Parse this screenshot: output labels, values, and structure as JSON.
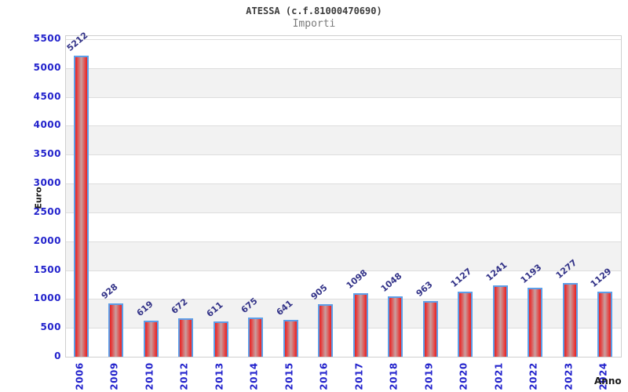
{
  "header": {
    "title": "ATESSA (c.f.81000470690)",
    "subtitle": "Importi"
  },
  "chart_data": {
    "type": "bar",
    "title": "ATESSA (c.f.81000470690)",
    "subtitle": "Importi",
    "xlabel": "Anno",
    "ylabel": "Euro",
    "categories": [
      "2006",
      "2009",
      "2010",
      "2012",
      "2013",
      "2014",
      "2015",
      "2016",
      "2017",
      "2018",
      "2019",
      "2020",
      "2021",
      "2022",
      "2023",
      "2024"
    ],
    "values": [
      5212,
      928,
      619,
      672,
      611,
      675,
      641,
      905,
      1098,
      1048,
      963,
      1127,
      1241,
      1193,
      1277,
      1129
    ],
    "ylim": [
      0,
      5500
    ],
    "ytick_step": 500,
    "yticks": [
      0,
      500,
      1000,
      1500,
      2000,
      2500,
      3000,
      3500,
      4000,
      4500,
      5000,
      5500
    ],
    "grid": "horizontal-lines-with-alternating-bands",
    "legend": "none",
    "colors": {
      "bar_edge": "#e82121",
      "bar_mid": "#e05050",
      "bar_center": "#c9a0a0",
      "bar_border": "#5d9ee8",
      "axis_text": "#2222cc",
      "value_label": "#333388",
      "band": "#f2f2f2",
      "gridline": "#dddddd",
      "plot_border": "#cfcfcf",
      "title_color": "#3c3c3c",
      "subtitle_color": "#7a7a7a",
      "axis_title_color": "#1a1a1a"
    }
  }
}
